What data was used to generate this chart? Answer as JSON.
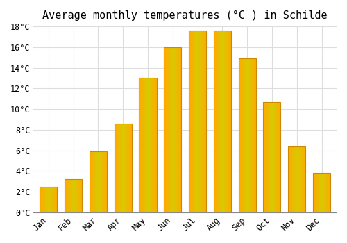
{
  "title": "Average monthly temperatures (°C ) in Schilde",
  "months": [
    "Jan",
    "Feb",
    "Mar",
    "Apr",
    "May",
    "Jun",
    "Jul",
    "Aug",
    "Sep",
    "Oct",
    "Nov",
    "Dec"
  ],
  "values": [
    2.5,
    3.2,
    5.9,
    8.6,
    13.0,
    16.0,
    17.6,
    17.6,
    14.9,
    10.7,
    6.4,
    3.8
  ],
  "bar_color": "#FFAA00",
  "bar_edge_color": "#CC8800",
  "background_color": "#ffffff",
  "plot_bg_color": "#ffffff",
  "grid_color": "#dddddd",
  "ylim": [
    0,
    18
  ],
  "ytick_step": 2,
  "title_fontsize": 11,
  "tick_fontsize": 8.5,
  "font_family": "monospace"
}
